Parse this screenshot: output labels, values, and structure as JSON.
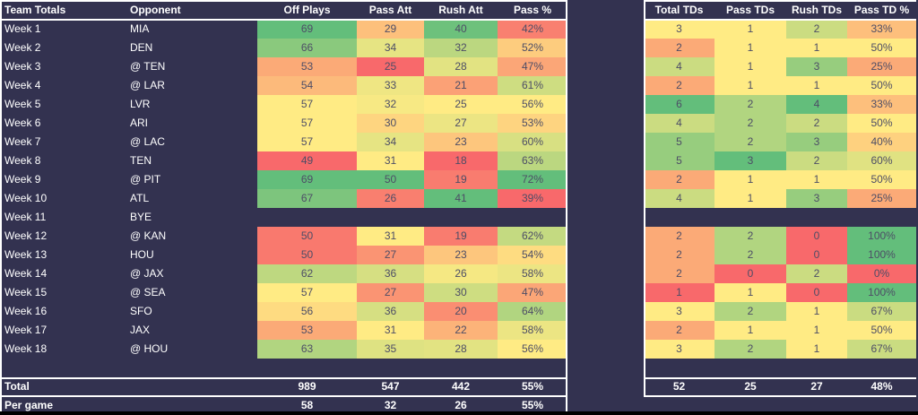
{
  "app": {
    "type": "spreadsheet-week-totals"
  },
  "colors": {
    "background": "#333250",
    "table_border": "#FFFFFF",
    "header_text": "#FFFFFF",
    "label_text": "#FFFFFF",
    "cell_text": "#4D4D66",
    "bottom_strip": "#000000",
    "scale_min": "#F8696B",
    "scale_mid": "#FFEB84",
    "scale_max": "#63BE7B"
  },
  "left_table": {
    "headers": [
      "Team Totals",
      "Opponent",
      "Off Plays",
      "Pass Att",
      "Rush Att",
      "Pass %"
    ],
    "rows": [
      {
        "week": "Week 1",
        "opponent": "MIA",
        "cells": [
          {
            "v": "69",
            "c": "#63BE7B"
          },
          {
            "v": "29",
            "c": "#FDC07C"
          },
          {
            "v": "40",
            "c": "#6DC17C"
          },
          {
            "v": "42%",
            "c": "#F98070"
          }
        ]
      },
      {
        "week": "Week 2",
        "opponent": "DEN",
        "cells": [
          {
            "v": "66",
            "c": "#8AC97D"
          },
          {
            "v": "34",
            "c": "#E6E483"
          },
          {
            "v": "32",
            "c": "#BBD780"
          },
          {
            "v": "52%",
            "c": "#FDCC7E"
          }
        ]
      },
      {
        "week": "Week 3",
        "opponent": "@ TEN",
        "cells": [
          {
            "v": "53",
            "c": "#FBAA77"
          },
          {
            "v": "25",
            "c": "#F8696B"
          },
          {
            "v": "28",
            "c": "#E2E382"
          },
          {
            "v": "47%",
            "c": "#FBA677"
          }
        ]
      },
      {
        "week": "Week 4",
        "opponent": "@ LAR",
        "cells": [
          {
            "v": "54",
            "c": "#FCBA7B"
          },
          {
            "v": "33",
            "c": "#EFE683"
          },
          {
            "v": "21",
            "c": "#FBA176"
          },
          {
            "v": "61%",
            "c": "#CEDD81"
          }
        ]
      },
      {
        "week": "Week 5",
        "opponent": "LVR",
        "cells": [
          {
            "v": "57",
            "c": "#FFEB84"
          },
          {
            "v": "32",
            "c": "#F7E984"
          },
          {
            "v": "25",
            "c": "#FFEB84"
          },
          {
            "v": "56%",
            "c": "#FFEB84"
          }
        ]
      },
      {
        "week": "Week 6",
        "opponent": "ARI",
        "cells": [
          {
            "v": "57",
            "c": "#FFEB84"
          },
          {
            "v": "30",
            "c": "#FED580"
          },
          {
            "v": "27",
            "c": "#ECE583"
          },
          {
            "v": "53%",
            "c": "#FED480"
          }
        ]
      },
      {
        "week": "Week 7",
        "opponent": "@ LAC",
        "cells": [
          {
            "v": "57",
            "c": "#FFEB84"
          },
          {
            "v": "34",
            "c": "#E6E483"
          },
          {
            "v": "23",
            "c": "#FDC67D"
          },
          {
            "v": "60%",
            "c": "#D8E082"
          }
        ]
      },
      {
        "week": "Week 8",
        "opponent": "TEN",
        "cells": [
          {
            "v": "49",
            "c": "#F8696B"
          },
          {
            "v": "31",
            "c": "#FFEB84"
          },
          {
            "v": "18",
            "c": "#F8696B"
          },
          {
            "v": "63%",
            "c": "#BBD780"
          }
        ]
      },
      {
        "week": "Week 9",
        "opponent": "@ PIT",
        "cells": [
          {
            "v": "69",
            "c": "#63BE7B"
          },
          {
            "v": "50",
            "c": "#63BE7B"
          },
          {
            "v": "19",
            "c": "#F97C6F"
          },
          {
            "v": "72%",
            "c": "#63BE7B"
          }
        ]
      },
      {
        "week": "Week 10",
        "opponent": "ATL",
        "cells": [
          {
            "v": "67",
            "c": "#7DC57D"
          },
          {
            "v": "26",
            "c": "#F97F6F"
          },
          {
            "v": "41",
            "c": "#63BE7B"
          },
          {
            "v": "39%",
            "c": "#F8696B"
          }
        ]
      },
      {
        "week": "Week 11",
        "opponent": "BYE",
        "cells": []
      },
      {
        "week": "Week 12",
        "opponent": "@ KAN",
        "cells": [
          {
            "v": "50",
            "c": "#F9796E"
          },
          {
            "v": "31",
            "c": "#FFEB84"
          },
          {
            "v": "19",
            "c": "#F97C6F"
          },
          {
            "v": "62%",
            "c": "#C4DA81"
          }
        ]
      },
      {
        "week": "Week 13",
        "opponent": "HOU",
        "cells": [
          {
            "v": "50",
            "c": "#F9796E"
          },
          {
            "v": "27",
            "c": "#FA9473"
          },
          {
            "v": "23",
            "c": "#FDC67D"
          },
          {
            "v": "54%",
            "c": "#FEDC81"
          }
        ]
      },
      {
        "week": "Week 14",
        "opponent": "@ JAX",
        "cells": [
          {
            "v": "62",
            "c": "#BED880"
          },
          {
            "v": "36",
            "c": "#D6DF82"
          },
          {
            "v": "26",
            "c": "#F5E883"
          },
          {
            "v": "58%",
            "c": "#ECE583"
          }
        ]
      },
      {
        "week": "Week 15",
        "opponent": "@ SEA",
        "cells": [
          {
            "v": "57",
            "c": "#FFEB84"
          },
          {
            "v": "27",
            "c": "#FA9473"
          },
          {
            "v": "30",
            "c": "#CEDD81"
          },
          {
            "v": "47%",
            "c": "#FBA677"
          }
        ]
      },
      {
        "week": "Week 16",
        "opponent": "SFO",
        "cells": [
          {
            "v": "56",
            "c": "#FEDB81"
          },
          {
            "v": "36",
            "c": "#D6DF82"
          },
          {
            "v": "20",
            "c": "#FA8E72"
          },
          {
            "v": "64%",
            "c": "#B1D580"
          }
        ]
      },
      {
        "week": "Week 17",
        "opponent": "JAX",
        "cells": [
          {
            "v": "53",
            "c": "#FBAA77"
          },
          {
            "v": "31",
            "c": "#FFEB84"
          },
          {
            "v": "22",
            "c": "#FCB379"
          },
          {
            "v": "58%",
            "c": "#ECE583"
          }
        ]
      },
      {
        "week": "Week 18",
        "opponent": "@ HOU",
        "cells": [
          {
            "v": "63",
            "c": "#B1D580"
          },
          {
            "v": "35",
            "c": "#DEE282"
          },
          {
            "v": "28",
            "c": "#E2E382"
          },
          {
            "v": "56%",
            "c": "#FFEB84"
          }
        ]
      }
    ],
    "total": {
      "label": "Total",
      "values": [
        "989",
        "547",
        "442",
        "55%"
      ]
    },
    "per_game": {
      "label": "Per game",
      "values": [
        "58",
        "32",
        "26",
        "55%"
      ]
    }
  },
  "right_table": {
    "headers": [
      "Total TDs",
      "Pass TDs",
      "Rush TDs",
      "Pass TD %"
    ],
    "rows": [
      {
        "cells": [
          {
            "v": "3",
            "c": "#FFEB84"
          },
          {
            "v": "1",
            "c": "#FFEB84"
          },
          {
            "v": "2",
            "c": "#CBDC81"
          },
          {
            "v": "33%",
            "c": "#FDBF7C"
          }
        ]
      },
      {
        "cells": [
          {
            "v": "2",
            "c": "#FBAA77"
          },
          {
            "v": "1",
            "c": "#FFEB84"
          },
          {
            "v": "1",
            "c": "#FFEB84"
          },
          {
            "v": "50%",
            "c": "#FFEB84"
          }
        ]
      },
      {
        "cells": [
          {
            "v": "4",
            "c": "#CBDC81"
          },
          {
            "v": "1",
            "c": "#FFEB84"
          },
          {
            "v": "3",
            "c": "#97CD7E"
          },
          {
            "v": "25%",
            "c": "#FBAA77"
          }
        ]
      },
      {
        "cells": [
          {
            "v": "2",
            "c": "#FBAA77"
          },
          {
            "v": "1",
            "c": "#FFEB84"
          },
          {
            "v": "1",
            "c": "#FFEB84"
          },
          {
            "v": "50%",
            "c": "#FFEB84"
          }
        ]
      },
      {
        "cells": [
          {
            "v": "6",
            "c": "#63BE7B"
          },
          {
            "v": "2",
            "c": "#B1D580"
          },
          {
            "v": "4",
            "c": "#63BE7B"
          },
          {
            "v": "33%",
            "c": "#FDBF7C"
          }
        ]
      },
      {
        "cells": [
          {
            "v": "4",
            "c": "#CBDC81"
          },
          {
            "v": "2",
            "c": "#B1D580"
          },
          {
            "v": "2",
            "c": "#CBDC81"
          },
          {
            "v": "50%",
            "c": "#FFEB84"
          }
        ]
      },
      {
        "cells": [
          {
            "v": "5",
            "c": "#97CD7E"
          },
          {
            "v": "2",
            "c": "#B1D580"
          },
          {
            "v": "3",
            "c": "#97CD7E"
          },
          {
            "v": "40%",
            "c": "#FED17F"
          }
        ]
      },
      {
        "cells": [
          {
            "v": "5",
            "c": "#97CD7E"
          },
          {
            "v": "3",
            "c": "#63BE7B"
          },
          {
            "v": "2",
            "c": "#CBDC81"
          },
          {
            "v": "60%",
            "c": "#E0E282"
          }
        ]
      },
      {
        "cells": [
          {
            "v": "2",
            "c": "#FBAA77"
          },
          {
            "v": "1",
            "c": "#FFEB84"
          },
          {
            "v": "1",
            "c": "#FFEB84"
          },
          {
            "v": "50%",
            "c": "#FFEB84"
          }
        ]
      },
      {
        "cells": [
          {
            "v": "4",
            "c": "#CBDC81"
          },
          {
            "v": "1",
            "c": "#FFEB84"
          },
          {
            "v": "3",
            "c": "#97CD7E"
          },
          {
            "v": "25%",
            "c": "#FBAA77"
          }
        ]
      },
      {
        "cells": []
      },
      {
        "cells": [
          {
            "v": "2",
            "c": "#FBAA77"
          },
          {
            "v": "2",
            "c": "#B1D580"
          },
          {
            "v": "0",
            "c": "#F8696B"
          },
          {
            "v": "100%",
            "c": "#63BE7B"
          }
        ]
      },
      {
        "cells": [
          {
            "v": "2",
            "c": "#FBAA77"
          },
          {
            "v": "2",
            "c": "#B1D580"
          },
          {
            "v": "0",
            "c": "#F8696B"
          },
          {
            "v": "100%",
            "c": "#63BE7B"
          }
        ]
      },
      {
        "cells": [
          {
            "v": "2",
            "c": "#FBAA77"
          },
          {
            "v": "0",
            "c": "#F8696B"
          },
          {
            "v": "2",
            "c": "#CBDC81"
          },
          {
            "v": "0%",
            "c": "#F8696B"
          }
        ]
      },
      {
        "cells": [
          {
            "v": "1",
            "c": "#F8696B"
          },
          {
            "v": "1",
            "c": "#FFEB84"
          },
          {
            "v": "0",
            "c": "#F8696B"
          },
          {
            "v": "100%",
            "c": "#63BE7B"
          }
        ]
      },
      {
        "cells": [
          {
            "v": "3",
            "c": "#FFEB84"
          },
          {
            "v": "2",
            "c": "#B1D580"
          },
          {
            "v": "1",
            "c": "#FFEB84"
          },
          {
            "v": "67%",
            "c": "#CADC81"
          }
        ]
      },
      {
        "cells": [
          {
            "v": "2",
            "c": "#FBAA77"
          },
          {
            "v": "1",
            "c": "#FFEB84"
          },
          {
            "v": "1",
            "c": "#FFEB84"
          },
          {
            "v": "50%",
            "c": "#FFEB84"
          }
        ]
      },
      {
        "cells": [
          {
            "v": "3",
            "c": "#FFEB84"
          },
          {
            "v": "2",
            "c": "#B1D580"
          },
          {
            "v": "1",
            "c": "#FFEB84"
          },
          {
            "v": "67%",
            "c": "#CADC81"
          }
        ]
      }
    ],
    "total": {
      "values": [
        "52",
        "25",
        "27",
        "48%"
      ]
    }
  }
}
